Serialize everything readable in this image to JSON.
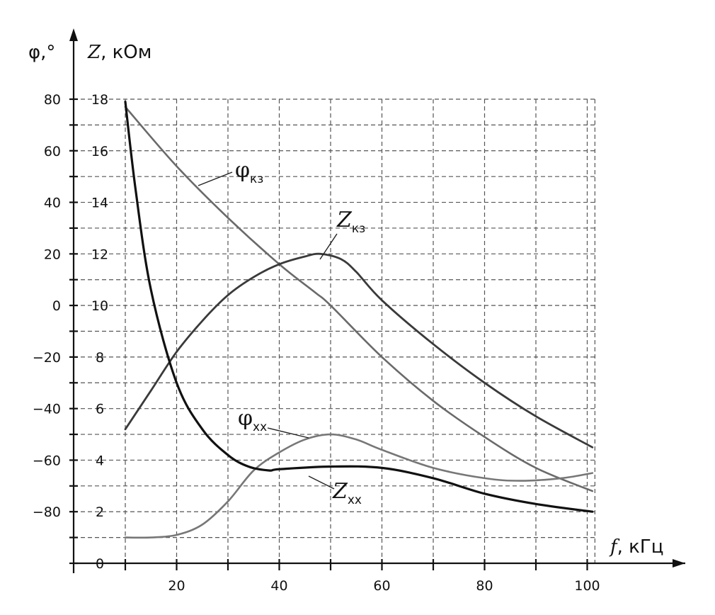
{
  "chart_data": {
    "type": "line",
    "x_axis": {
      "label_var": "f",
      "label_unit": ", кГц",
      "ticks": [
        "20",
        "40",
        "60",
        "80",
        "100"
      ],
      "range": [
        0,
        110
      ]
    },
    "y_left_axis": {
      "label": "φ,°",
      "range": [
        -100,
        80
      ],
      "ticks": [
        "80",
        "60",
        "40",
        "20",
        "0",
        "−20",
        "−40",
        "−60",
        "−80"
      ],
      "tick_values": [
        80,
        60,
        40,
        20,
        0,
        -20,
        -40,
        -60,
        -80
      ]
    },
    "y_right_axis": {
      "label_var": "Z",
      "label_unit": ", кОм",
      "range": [
        0,
        18
      ],
      "ticks": [
        "18",
        "16",
        "14",
        "12",
        "10",
        "8",
        "6",
        "4",
        "2",
        "0"
      ],
      "tick_values": [
        18,
        16,
        14,
        12,
        10,
        8,
        6,
        4,
        2,
        0
      ]
    },
    "grid": true,
    "series": [
      {
        "name": "φ_кз",
        "axis": "left",
        "color": "#6a6a6a",
        "width": 2.6,
        "points": [
          [
            10,
            77
          ],
          [
            20,
            54
          ],
          [
            30,
            34
          ],
          [
            40,
            16
          ],
          [
            47,
            5
          ],
          [
            50,
            0
          ],
          [
            60,
            -20
          ],
          [
            70,
            -37
          ],
          [
            80,
            -51
          ],
          [
            90,
            -63
          ],
          [
            101,
            -72
          ]
        ]
      },
      {
        "name": "Z_кз",
        "axis": "right",
        "color": "#3a3a3a",
        "width": 2.8,
        "points": [
          [
            10,
            5.2
          ],
          [
            15,
            6.7
          ],
          [
            20,
            8.2
          ],
          [
            25,
            9.4
          ],
          [
            30,
            10.4
          ],
          [
            35,
            11.1
          ],
          [
            40,
            11.6
          ],
          [
            45,
            11.9
          ],
          [
            48,
            12.0
          ],
          [
            52,
            11.8
          ],
          [
            55,
            11.3
          ],
          [
            60,
            10.2
          ],
          [
            70,
            8.5
          ],
          [
            80,
            7.0
          ],
          [
            90,
            5.7
          ],
          [
            101,
            4.5
          ]
        ]
      },
      {
        "name": "φ_хх",
        "axis": "left",
        "color": "#777777",
        "width": 2.6,
        "points": [
          [
            10,
            -90
          ],
          [
            15,
            -90
          ],
          [
            20,
            -89
          ],
          [
            25,
            -85
          ],
          [
            30,
            -76
          ],
          [
            35,
            -64
          ],
          [
            40,
            -57
          ],
          [
            45,
            -52
          ],
          [
            50,
            -50
          ],
          [
            55,
            -52
          ],
          [
            60,
            -56
          ],
          [
            70,
            -63
          ],
          [
            80,
            -67
          ],
          [
            87,
            -68
          ],
          [
            95,
            -67
          ],
          [
            101,
            -65
          ]
        ]
      },
      {
        "name": "Z_хх",
        "axis": "right",
        "color": "#111111",
        "width": 3.2,
        "points": [
          [
            10,
            17.9
          ],
          [
            12,
            14.5
          ],
          [
            15,
            10.6
          ],
          [
            20,
            7.0
          ],
          [
            25,
            5.2
          ],
          [
            30,
            4.2
          ],
          [
            34,
            3.75
          ],
          [
            38,
            3.6
          ],
          [
            40,
            3.65
          ],
          [
            50,
            3.75
          ],
          [
            60,
            3.7
          ],
          [
            70,
            3.3
          ],
          [
            80,
            2.7
          ],
          [
            90,
            2.3
          ],
          [
            101,
            2.0
          ]
        ]
      }
    ],
    "labels": [
      {
        "key": "phi_kz",
        "main": "φ",
        "sub": "кз"
      },
      {
        "key": "z_kz",
        "main": "Z",
        "sub": "кз"
      },
      {
        "key": "phi_xx",
        "main": "φ",
        "sub": "хх"
      },
      {
        "key": "z_xx",
        "main": "Z",
        "sub": "хх"
      }
    ]
  }
}
